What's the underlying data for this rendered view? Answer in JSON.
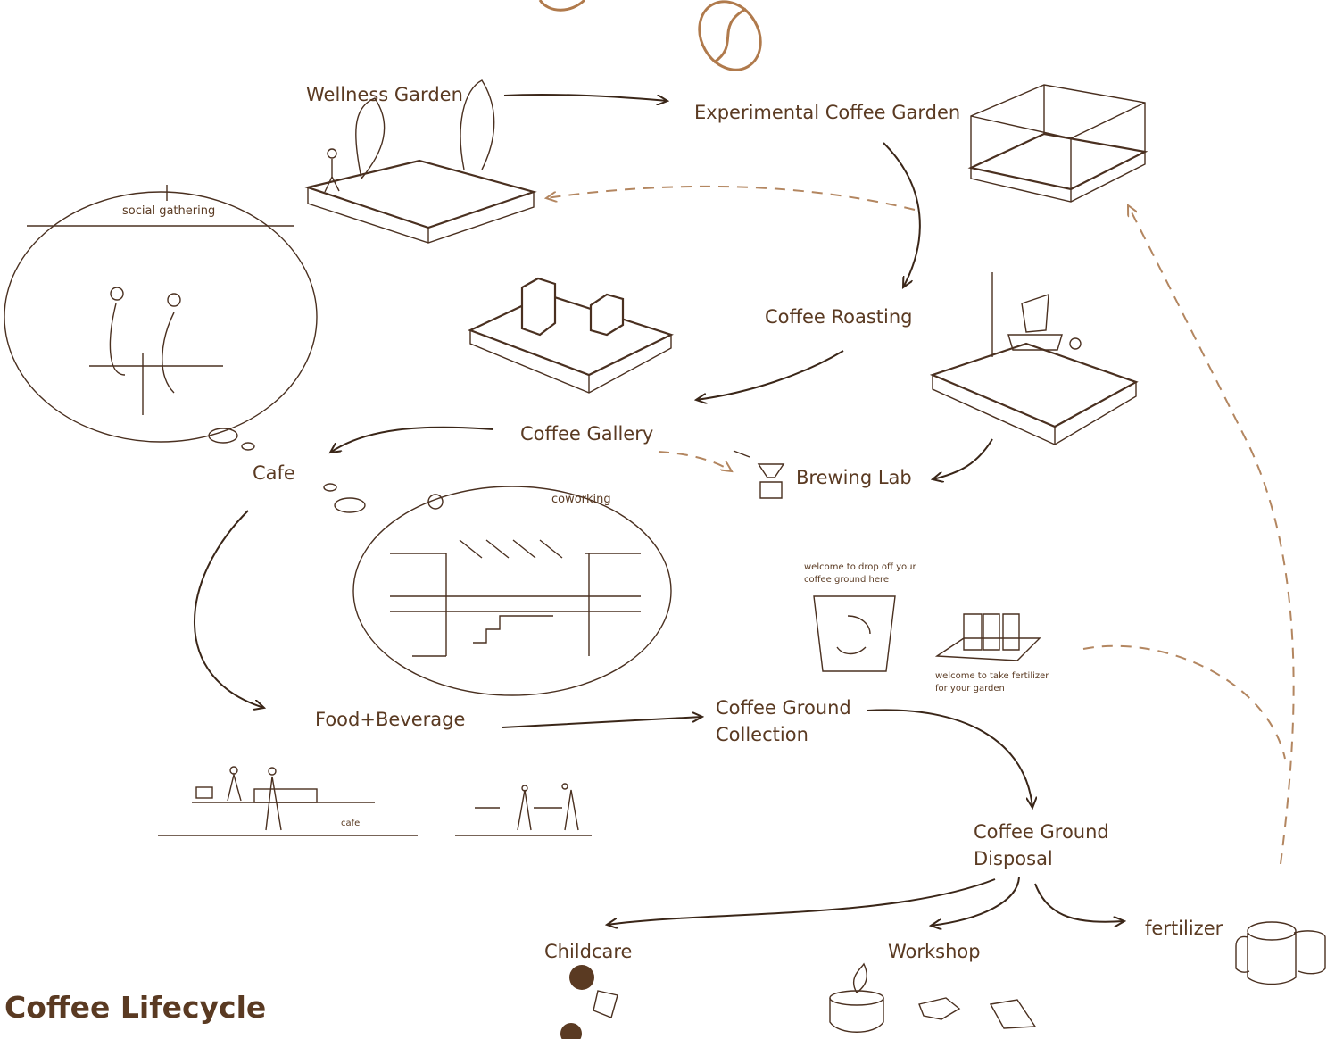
{
  "title": "Coffee Lifecycle",
  "nodes": [
    {
      "lines": [
        "Wellness Garden"
      ]
    },
    {
      "lines": [
        "Experimental Coffee Garden"
      ]
    },
    {
      "lines": [
        "Coffee Roasting"
      ]
    },
    {
      "lines": [
        "Coffee Gallery"
      ]
    },
    {
      "lines": [
        "Cafe"
      ]
    },
    {
      "lines": [
        "Brewing Lab"
      ]
    },
    {
      "lines": [
        "Food+Beverage"
      ]
    },
    {
      "lines": [
        "Coffee Ground",
        "Collection"
      ]
    },
    {
      "lines": [
        "Coffee Ground",
        "Disposal"
      ]
    },
    {
      "lines": [
        "fertilizer"
      ]
    },
    {
      "lines": [
        "Childcare"
      ]
    },
    {
      "lines": [
        "Workshop"
      ]
    }
  ],
  "notes": [
    {
      "lines": [
        "social gathering"
      ]
    },
    {
      "lines": [
        "coworking"
      ]
    },
    {
      "lines": [
        "welcome to drop off your",
        "coffee ground here"
      ]
    },
    {
      "lines": [
        "welcome to take fertilizer",
        "for your garden"
      ]
    },
    {
      "lines": [
        "cafe"
      ]
    }
  ]
}
